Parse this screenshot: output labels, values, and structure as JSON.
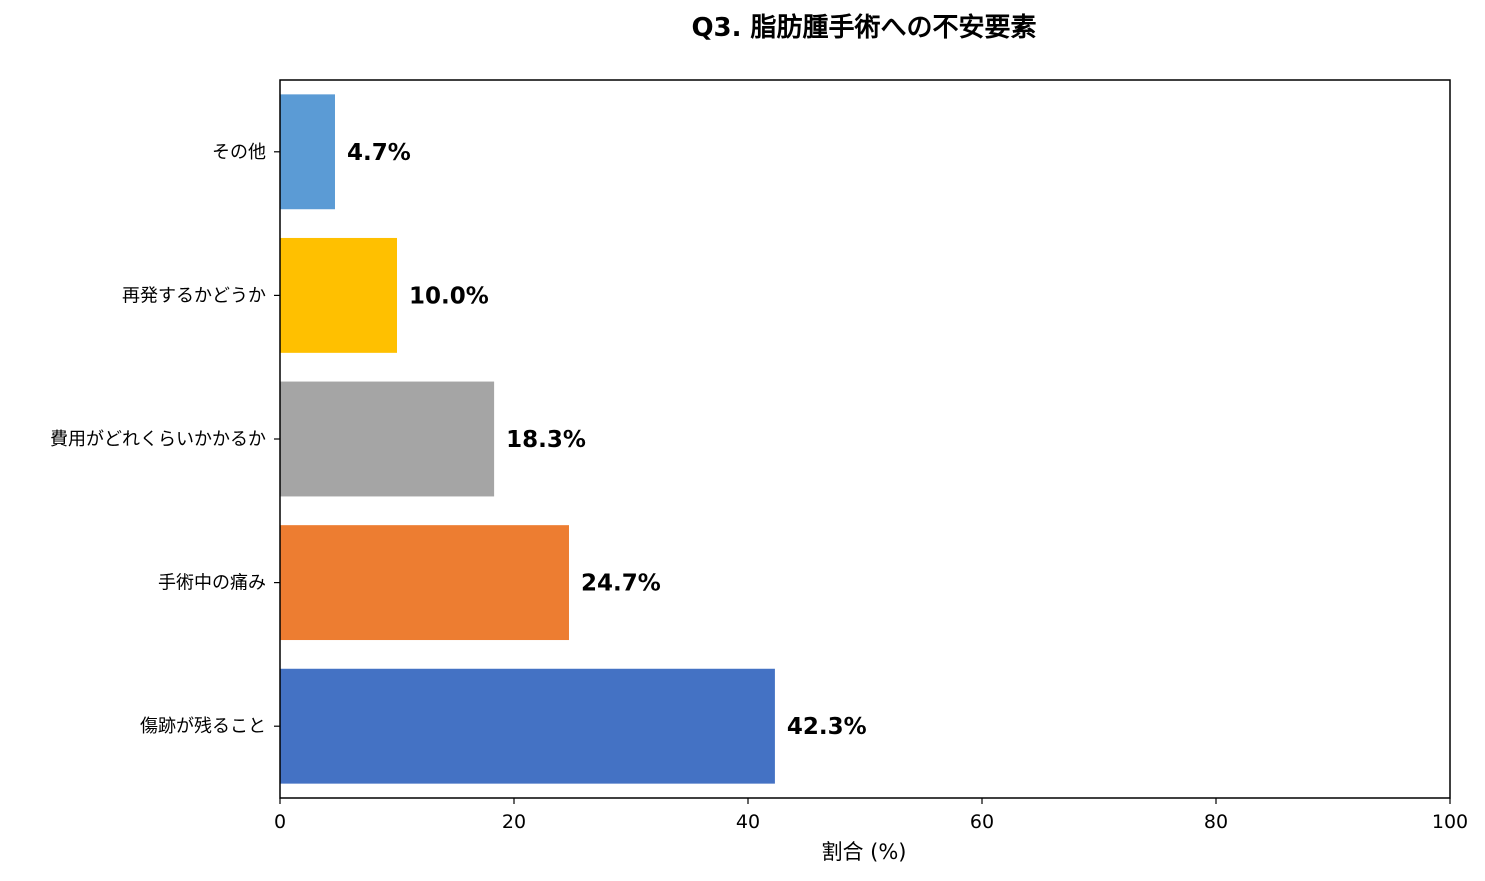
{
  "chart_data": {
    "type": "bar",
    "orientation": "horizontal",
    "title": "Q3. 脂肪腫手術への不安要素",
    "xlabel": "割合 (%)",
    "ylabel": "",
    "xlim": [
      0,
      100
    ],
    "xticks": [
      0,
      20,
      40,
      60,
      80,
      100
    ],
    "xtick_labels": [
      "0",
      "20",
      "40",
      "60",
      "80",
      "100"
    ],
    "grid": false,
    "legend": "none",
    "categories": [
      "その他",
      "再発するかどうか",
      "費用がどれくらいかかるか",
      "手術中の痛み",
      "傷跡が残ること"
    ],
    "values": [
      4.7,
      10.0,
      18.3,
      24.7,
      42.3
    ],
    "value_labels": [
      "4.7%",
      "10.0%",
      "18.3%",
      "24.7%",
      "42.3%"
    ],
    "colors": [
      "#5b9bd5",
      "#ffc000",
      "#a5a5a5",
      "#ed7d31",
      "#4472c4"
    ]
  }
}
